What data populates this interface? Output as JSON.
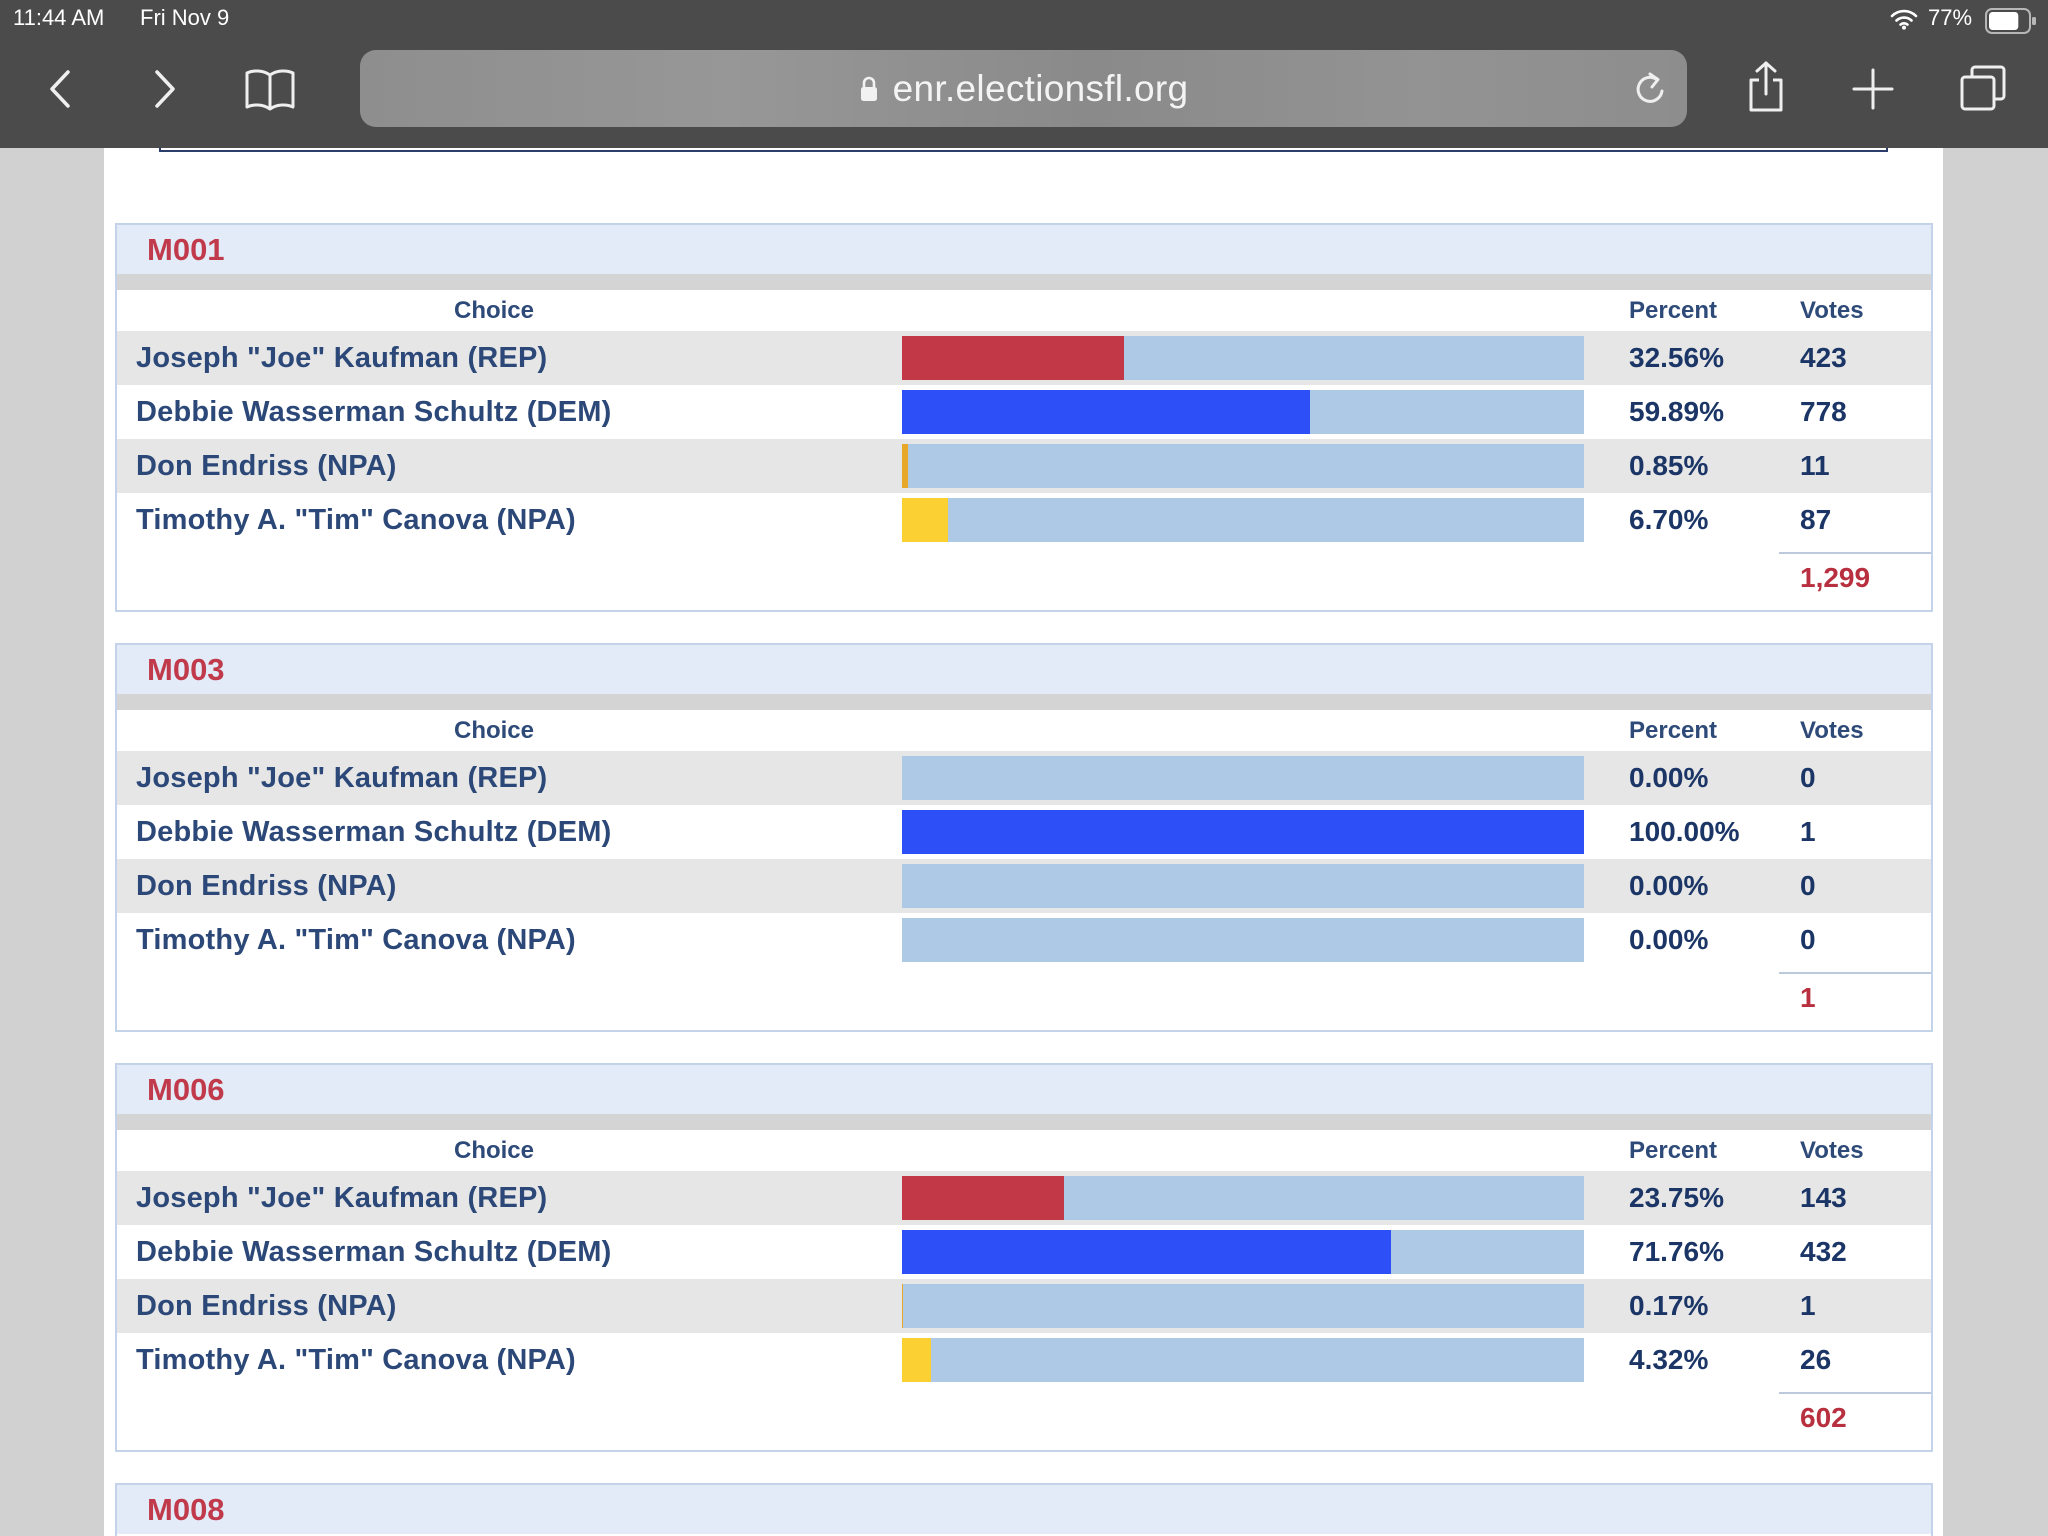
{
  "status_bar": {
    "time": "11:44 AM",
    "date": "Fri Nov 9",
    "battery_percent": "77%",
    "battery_level": 0.77
  },
  "browser": {
    "url": "enr.electionsfl.org"
  },
  "colors": {
    "chrome": "#4b4b4b",
    "bar_track": "#aec9e6",
    "precinct_title": "#c13a4b",
    "rep": "#c23847",
    "dem": "#2d4ff8",
    "npa_endriss": "#e7a82a",
    "npa_canova": "#fad032"
  },
  "columns": {
    "choice": "Choice",
    "percent": "Percent",
    "votes": "Votes"
  },
  "precincts": [
    {
      "id": "M001",
      "total_votes": "1,299",
      "rows": [
        {
          "choice": "Joseph \"Joe\" Kaufman (REP)",
          "percent": "32.56%",
          "share": 32.56,
          "votes": "423",
          "bar_color": "#c23847"
        },
        {
          "choice": "Debbie Wasserman Schultz (DEM)",
          "percent": "59.89%",
          "share": 59.89,
          "votes": "778",
          "bar_color": "#2d4ff8"
        },
        {
          "choice": "Don Endriss (NPA)",
          "percent": "0.85%",
          "share": 0.85,
          "votes": "11",
          "bar_color": "#e7a82a"
        },
        {
          "choice": "Timothy A. \"Tim\" Canova (NPA)",
          "percent": "6.70%",
          "share": 6.7,
          "votes": "87",
          "bar_color": "#fad032"
        }
      ]
    },
    {
      "id": "M003",
      "total_votes": "1",
      "rows": [
        {
          "choice": "Joseph \"Joe\" Kaufman (REP)",
          "percent": "0.00%",
          "share": 0,
          "votes": "0",
          "bar_color": "#c23847"
        },
        {
          "choice": "Debbie Wasserman Schultz (DEM)",
          "percent": "100.00%",
          "share": 100,
          "votes": "1",
          "bar_color": "#2d4ff8"
        },
        {
          "choice": "Don Endriss (NPA)",
          "percent": "0.00%",
          "share": 0,
          "votes": "0",
          "bar_color": "#e7a82a"
        },
        {
          "choice": "Timothy A. \"Tim\" Canova (NPA)",
          "percent": "0.00%",
          "share": 0,
          "votes": "0",
          "bar_color": "#fad032"
        }
      ]
    },
    {
      "id": "M006",
      "total_votes": "602",
      "rows": [
        {
          "choice": "Joseph \"Joe\" Kaufman (REP)",
          "percent": "23.75%",
          "share": 23.75,
          "votes": "143",
          "bar_color": "#c23847"
        },
        {
          "choice": "Debbie Wasserman Schultz (DEM)",
          "percent": "71.76%",
          "share": 71.76,
          "votes": "432",
          "bar_color": "#2d4ff8"
        },
        {
          "choice": "Don Endriss (NPA)",
          "percent": "0.17%",
          "share": 0.17,
          "votes": "1",
          "bar_color": "#e7a82a"
        },
        {
          "choice": "Timothy A. \"Tim\" Canova (NPA)",
          "percent": "4.32%",
          "share": 4.32,
          "votes": "26",
          "bar_color": "#fad032"
        }
      ]
    },
    {
      "id": "M008",
      "rows": []
    }
  ]
}
